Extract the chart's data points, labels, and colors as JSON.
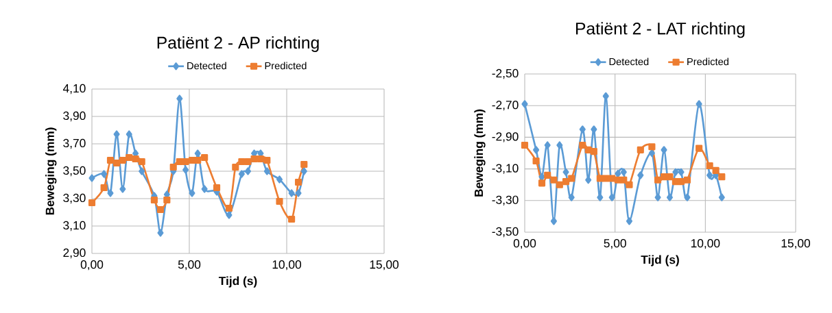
{
  "chart_data": [
    {
      "type": "line",
      "title": "Patiënt 2 - AP richting",
      "xlabel": "Tijd (s)",
      "ylabel": "Beweging (mm)",
      "x": [
        0,
        0.62,
        0.95,
        1.27,
        1.58,
        1.91,
        2.24,
        2.56,
        3.2,
        3.52,
        3.85,
        4.18,
        4.5,
        4.81,
        5.14,
        5.43,
        5.78,
        6.41,
        7.04,
        7.37,
        7.69,
        8.01,
        8.33,
        8.66,
        8.99,
        9.63,
        10.25,
        10.6,
        10.89
      ],
      "series": [
        {
          "name": "Detected",
          "color": "#5b9bd5",
          "marker": "diamond",
          "values": [
            3.45,
            3.48,
            3.34,
            3.77,
            3.37,
            3.77,
            3.63,
            3.5,
            3.32,
            3.05,
            3.33,
            3.5,
            4.03,
            3.51,
            3.34,
            3.63,
            3.37,
            3.35,
            3.18,
            null,
            3.48,
            3.5,
            3.63,
            3.63,
            3.5,
            3.44,
            3.34,
            3.34,
            3.5
          ]
        },
        {
          "name": "Predicted",
          "color": "#ed7d31",
          "marker": "square",
          "values": [
            3.27,
            3.38,
            3.58,
            3.56,
            3.58,
            3.6,
            3.59,
            3.57,
            3.29,
            3.22,
            3.29,
            3.53,
            3.57,
            3.57,
            3.58,
            3.58,
            3.6,
            3.38,
            3.23,
            3.53,
            3.57,
            3.57,
            3.59,
            3.59,
            3.58,
            3.28,
            3.15,
            3.42,
            3.55
          ]
        }
      ],
      "xlim": [
        0,
        15
      ],
      "ylim": [
        2.9,
        4.1
      ],
      "xticks": [
        {
          "value": 0,
          "label": "0,00"
        },
        {
          "value": 5,
          "label": "5,00"
        },
        {
          "value": 10,
          "label": "10,00"
        },
        {
          "value": 15,
          "label": "15,00"
        }
      ],
      "yticks": [
        {
          "value": 2.9,
          "label": "2,90"
        },
        {
          "value": 3.1,
          "label": "3,10"
        },
        {
          "value": 3.3,
          "label": "3,30"
        },
        {
          "value": 3.5,
          "label": "3,50"
        },
        {
          "value": 3.7,
          "label": "3,70"
        },
        {
          "value": 3.9,
          "label": "3,90"
        },
        {
          "value": 4.1,
          "label": "4,10"
        }
      ],
      "grid": true,
      "legend": "top",
      "line_style": "solid"
    },
    {
      "type": "line",
      "title": "Patiënt 2 - LAT richting",
      "xlabel": "Tijd (s)",
      "ylabel": "Beweging (mm)",
      "x": [
        0,
        0.63,
        0.95,
        1.26,
        1.61,
        1.93,
        2.28,
        2.59,
        3.2,
        3.52,
        3.83,
        4.17,
        4.49,
        4.83,
        5.16,
        5.48,
        5.79,
        6.41,
        7.04,
        7.37,
        7.71,
        8.03,
        8.35,
        8.66,
        9.0,
        9.65,
        10.24,
        10.58,
        10.91
      ],
      "series": [
        {
          "name": "Detected",
          "color": "#5b9bd5",
          "marker": "diamond",
          "values": [
            -2.69,
            -2.98,
            -3.15,
            -2.95,
            -3.43,
            -2.95,
            -3.12,
            -3.28,
            -2.85,
            -3.17,
            -2.85,
            -3.28,
            -2.64,
            -3.28,
            -3.13,
            -3.12,
            -3.43,
            -3.14,
            -3.0,
            -3.28,
            -2.98,
            -3.28,
            -3.12,
            -3.12,
            -3.28,
            -2.69,
            -3.14,
            -3.14,
            -3.28
          ]
        },
        {
          "name": "Predicted",
          "color": "#ed7d31",
          "marker": "square",
          "values": [
            -2.95,
            -3.05,
            -3.19,
            -3.14,
            -3.17,
            -3.2,
            -3.18,
            -3.16,
            -2.95,
            -2.98,
            -2.99,
            -3.16,
            -3.16,
            -3.16,
            -3.17,
            -3.17,
            -3.2,
            -2.98,
            -2.96,
            -3.17,
            -3.15,
            -3.15,
            -3.18,
            -3.18,
            -3.17,
            -2.97,
            -3.08,
            -3.11,
            -3.15
          ]
        }
      ],
      "xlim": [
        0,
        15
      ],
      "ylim": [
        -3.5,
        -2.5
      ],
      "xticks": [
        {
          "value": 0,
          "label": "0,00"
        },
        {
          "value": 5,
          "label": "5,00"
        },
        {
          "value": 10,
          "label": "10,00"
        },
        {
          "value": 15,
          "label": "15,00"
        }
      ],
      "yticks": [
        {
          "value": -3.5,
          "label": "-3,50"
        },
        {
          "value": -3.3,
          "label": "-3,30"
        },
        {
          "value": -3.1,
          "label": "-3,10"
        },
        {
          "value": -2.9,
          "label": "-2,90"
        },
        {
          "value": -2.7,
          "label": "-2,70"
        },
        {
          "value": -2.5,
          "label": "-2,50"
        }
      ],
      "grid": true,
      "legend": "top",
      "line_style": "solid"
    }
  ]
}
